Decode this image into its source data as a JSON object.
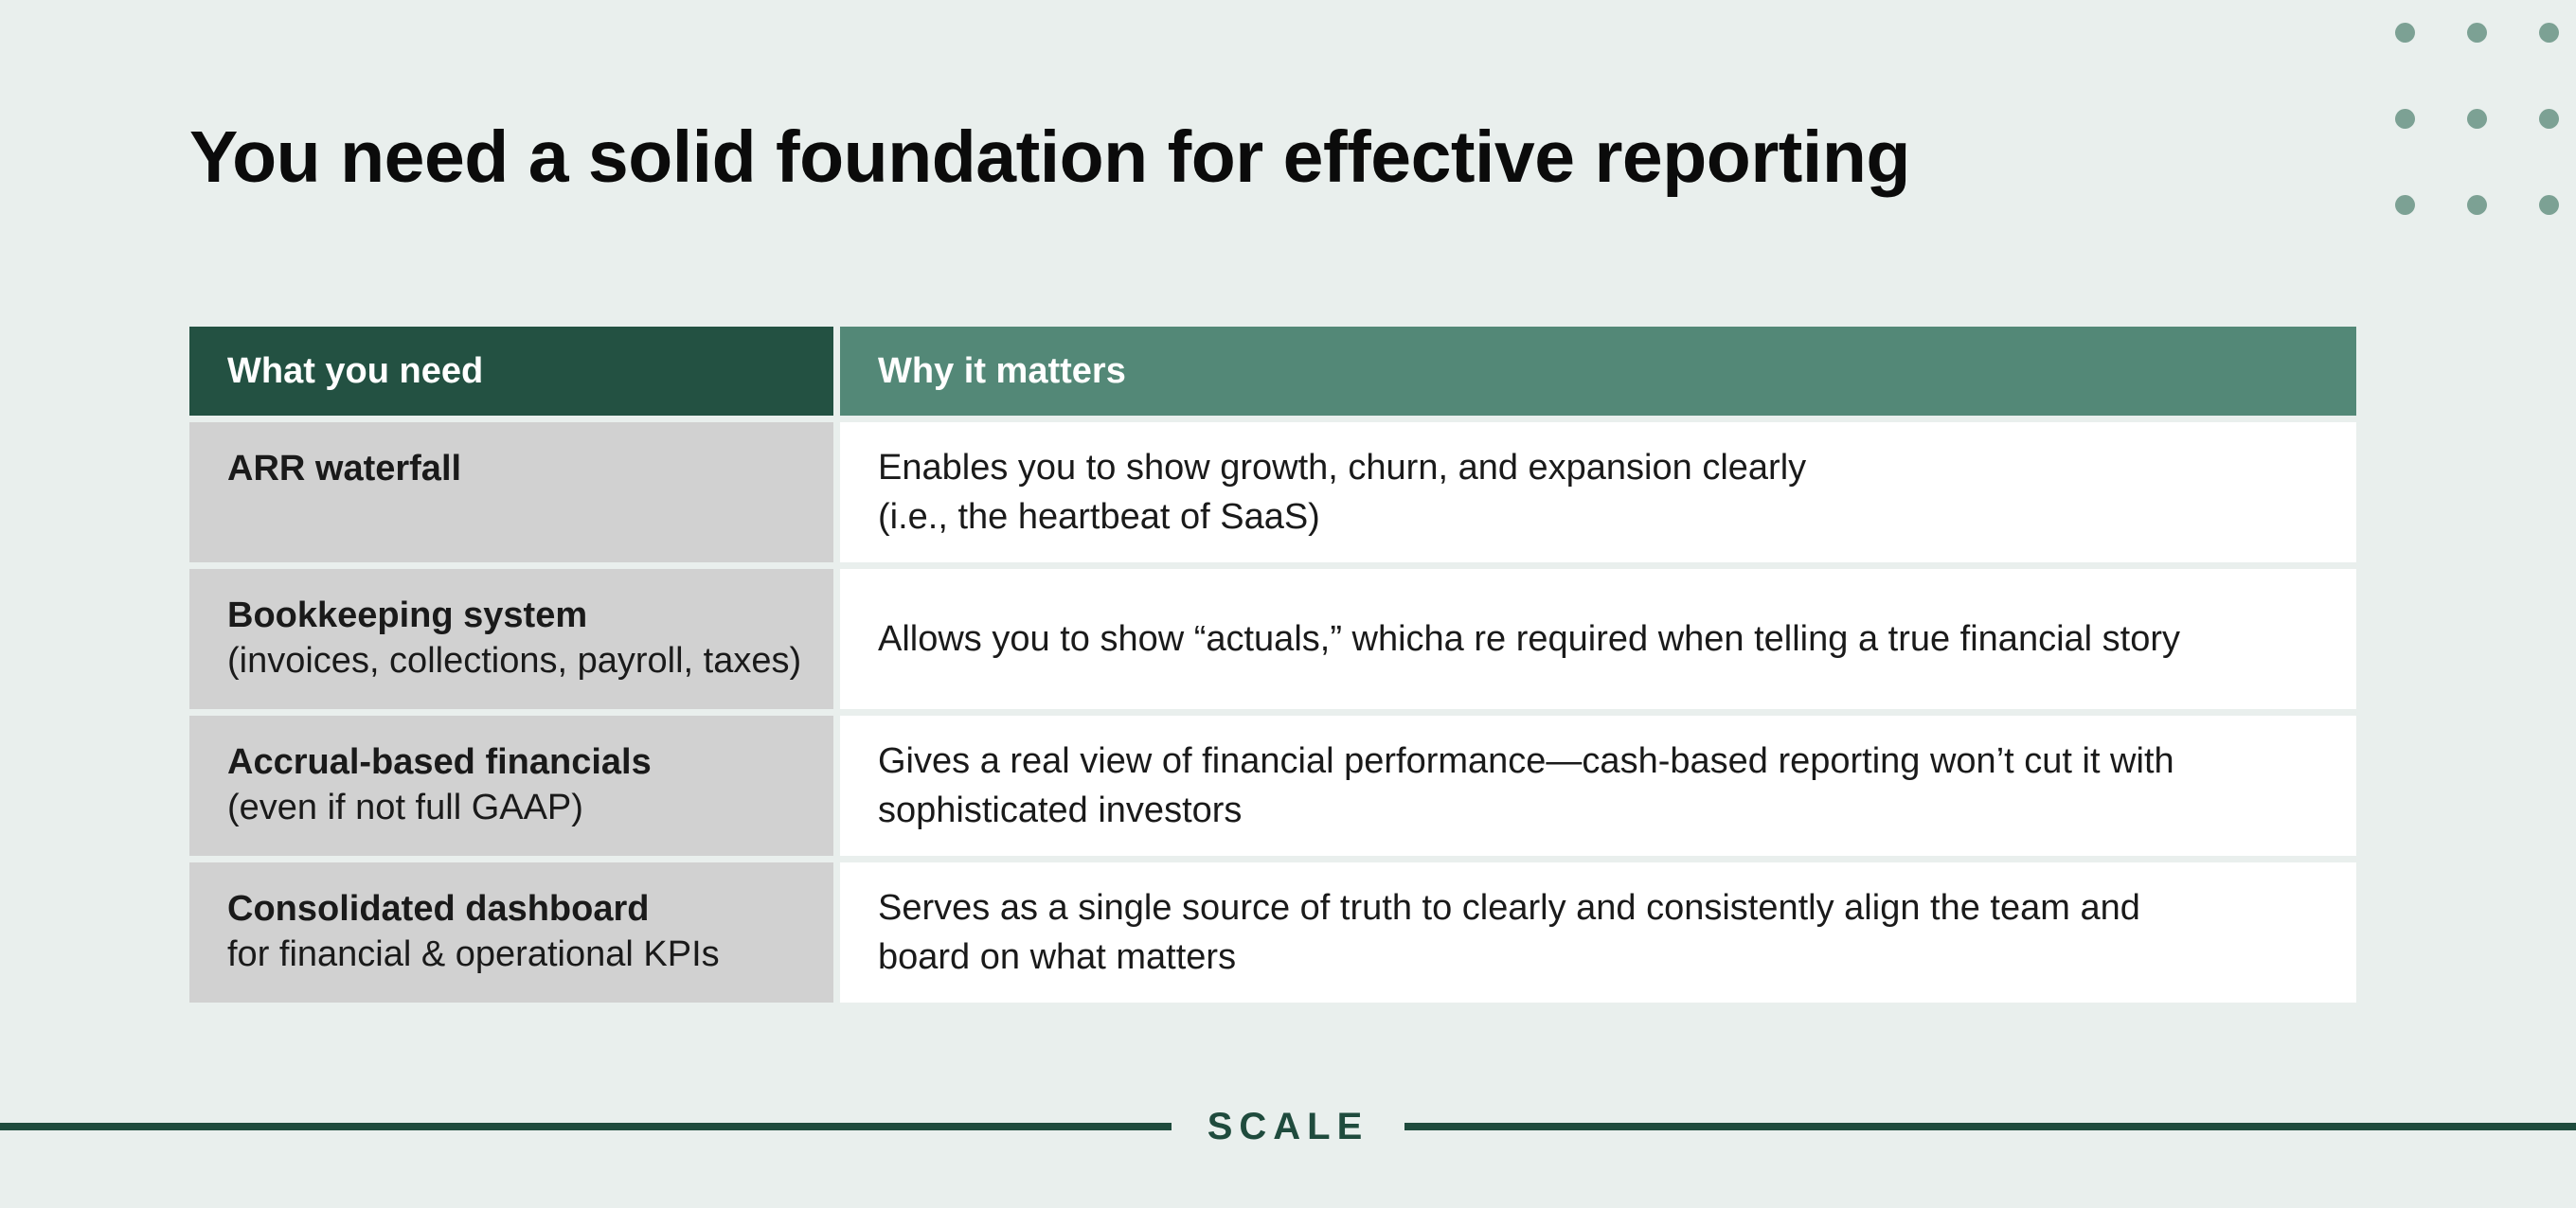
{
  "title": "You need a solid foundation for effective reporting",
  "table": {
    "headers": {
      "need": "What you need",
      "why": "Why it matters"
    },
    "rows": [
      {
        "need_title": "ARR waterfall",
        "need_sub": "",
        "why_line1": "Enables you to show growth, churn, and expansion clearly",
        "why_line2": "(i.e., the heartbeat of SaaS)"
      },
      {
        "need_title": "Bookkeeping system",
        "need_sub": "(invoices, collections, payroll, taxes)",
        "why_line1": "Allows you to show “actuals,” whicha re required when telling a true financial story",
        "why_line2": ""
      },
      {
        "need_title": "Accrual-based financials",
        "need_sub": "(even if not full GAAP)",
        "why_line1": "Gives a real view of financial performance—cash-based reporting won’t cut it with",
        "why_line2": "sophisticated investors"
      },
      {
        "need_title": "Consolidated dashboard",
        "need_sub": "for financial & operational KPIs",
        "why_line1": "Serves as a single source of truth to clearly and consistently align the team and",
        "why_line2": "board on what matters"
      }
    ]
  },
  "footer": {
    "logo": "SCALE"
  },
  "colors": {
    "background": "#E9EFED",
    "header_dark_green": "#235142",
    "header_light_green": "#538877",
    "row_label_gray": "#D1D1D1",
    "row_body_white": "#FFFFFF",
    "footer_green": "#1F4B3D",
    "dots_sage": "#7CA194",
    "text_dark": "#1A1A1A"
  }
}
